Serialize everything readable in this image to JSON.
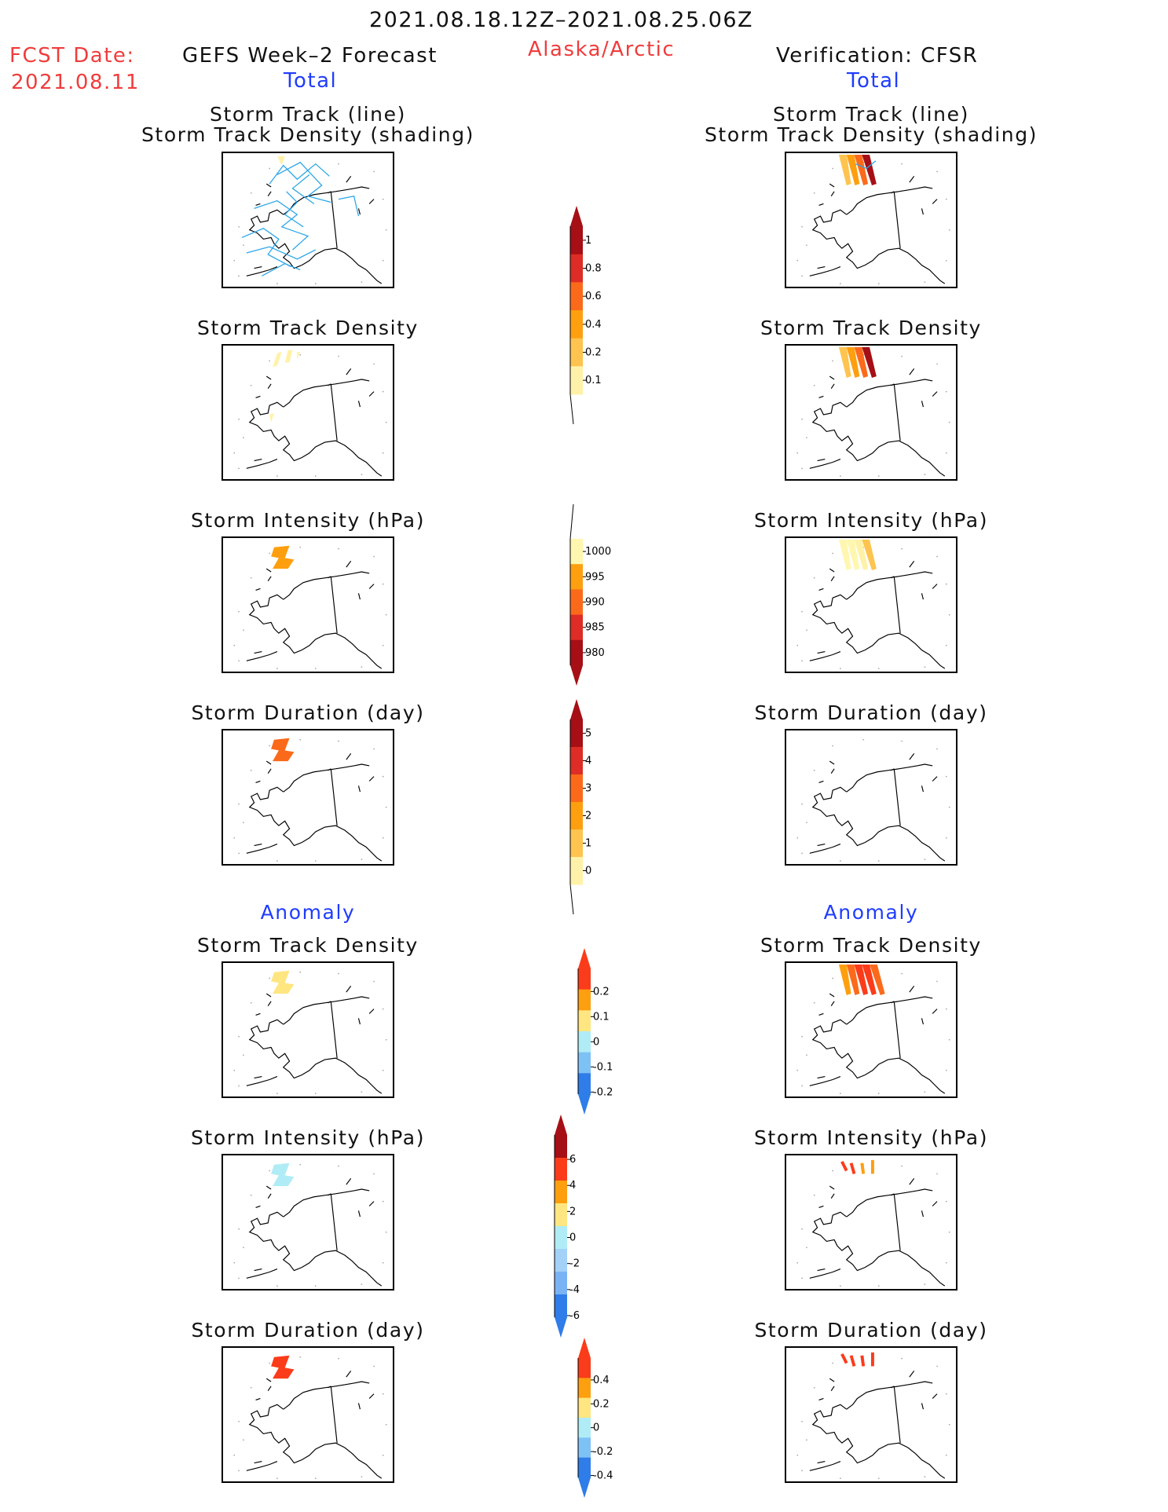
{
  "header": {
    "date_range": "2021.08.18.12Z–2021.08.25.06Z",
    "fcst_date_label": "FCST Date:",
    "fcst_date_value": "2021.08.11",
    "left_title": "GEFS Week–2 Forecast",
    "region": "Alaska/Arctic",
    "right_title": "Verification: CFSR",
    "left_sub": "Total",
    "right_sub": "Total"
  },
  "sections": {
    "anomaly_left": "Anomaly",
    "anomaly_right": "Anomaly"
  },
  "panels": {
    "track_line": "Storm Track (line)",
    "track_density_shading": "Storm Track Density (shading)",
    "track_density": "Storm Track Density",
    "intensity": "Storm Intensity (hPa)",
    "duration": "Storm Duration (day)"
  },
  "colorbars": {
    "density": {
      "labels": [
        "1",
        "0.8",
        "0.6",
        "0.4",
        "0.2",
        "0.1"
      ],
      "colors": [
        "#a50f15",
        "#de2d26",
        "#fb6a1a",
        "#fe9f0f",
        "#fec44f",
        "#fff2a8"
      ]
    },
    "intensity": {
      "labels": [
        "1000",
        "995",
        "990",
        "985",
        "980"
      ],
      "colors": [
        "#fff7b0",
        "#fe9f0f",
        "#fb6a1a",
        "#de2d26",
        "#a50f15"
      ]
    },
    "duration": {
      "labels": [
        "5",
        "4",
        "3",
        "2",
        "1",
        "0"
      ],
      "colors": [
        "#a50f15",
        "#de2d26",
        "#fb6a1a",
        "#fe9f0f",
        "#fec44f",
        "#fff2a8"
      ]
    },
    "density_anom": {
      "labels": [
        "0.2",
        "0.1",
        "0",
        "-0.1",
        "-0.2"
      ],
      "colors": [
        "#fb3c1a",
        "#fe9f0f",
        "#ffe680",
        "#b0ecf6",
        "#7ec1f5",
        "#2e7de8"
      ]
    },
    "intensity_anom": {
      "labels": [
        "6",
        "4",
        "2",
        "0",
        "-2",
        "-4",
        "-6"
      ],
      "colors": [
        "#a50f15",
        "#fb3c1a",
        "#fe9f0f",
        "#ffe680",
        "#b0ecf6",
        "#a3d1f7",
        "#7ab3f4",
        "#2e7de8"
      ]
    },
    "duration_anom": {
      "labels": [
        "0.4",
        "0.2",
        "0",
        "-0.2",
        "-0.4"
      ],
      "colors": [
        "#fb3c1a",
        "#fe9f0f",
        "#ffe680",
        "#b0ecf6",
        "#7ec1f5",
        "#2e7de8"
      ]
    }
  }
}
